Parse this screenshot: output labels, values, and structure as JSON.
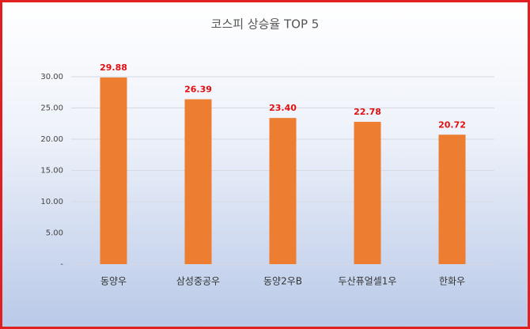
{
  "chart_data": {
    "type": "bar",
    "title": "코스피 상승율 TOP 5",
    "categories": [
      "동양우",
      "삼성중공우",
      "동양2우B",
      "두산퓨얼셀1우",
      "한화우"
    ],
    "values": [
      29.88,
      26.39,
      23.4,
      22.78,
      20.72
    ],
    "value_labels": [
      "29.88",
      "26.39",
      "23.40",
      "22.78",
      "20.72"
    ],
    "color": "#ed7d31",
    "label_color": "#e01010",
    "ylim": [
      0,
      30
    ],
    "yticks": [
      {
        "value": 0,
        "label": "-"
      },
      {
        "value": 5,
        "label": "5.00"
      },
      {
        "value": 10,
        "label": "10.00"
      },
      {
        "value": 15,
        "label": "15.00"
      },
      {
        "value": 20,
        "label": "20.00"
      },
      {
        "value": 25,
        "label": "25.00"
      },
      {
        "value": 30,
        "label": "30.00"
      }
    ],
    "grid": true
  }
}
